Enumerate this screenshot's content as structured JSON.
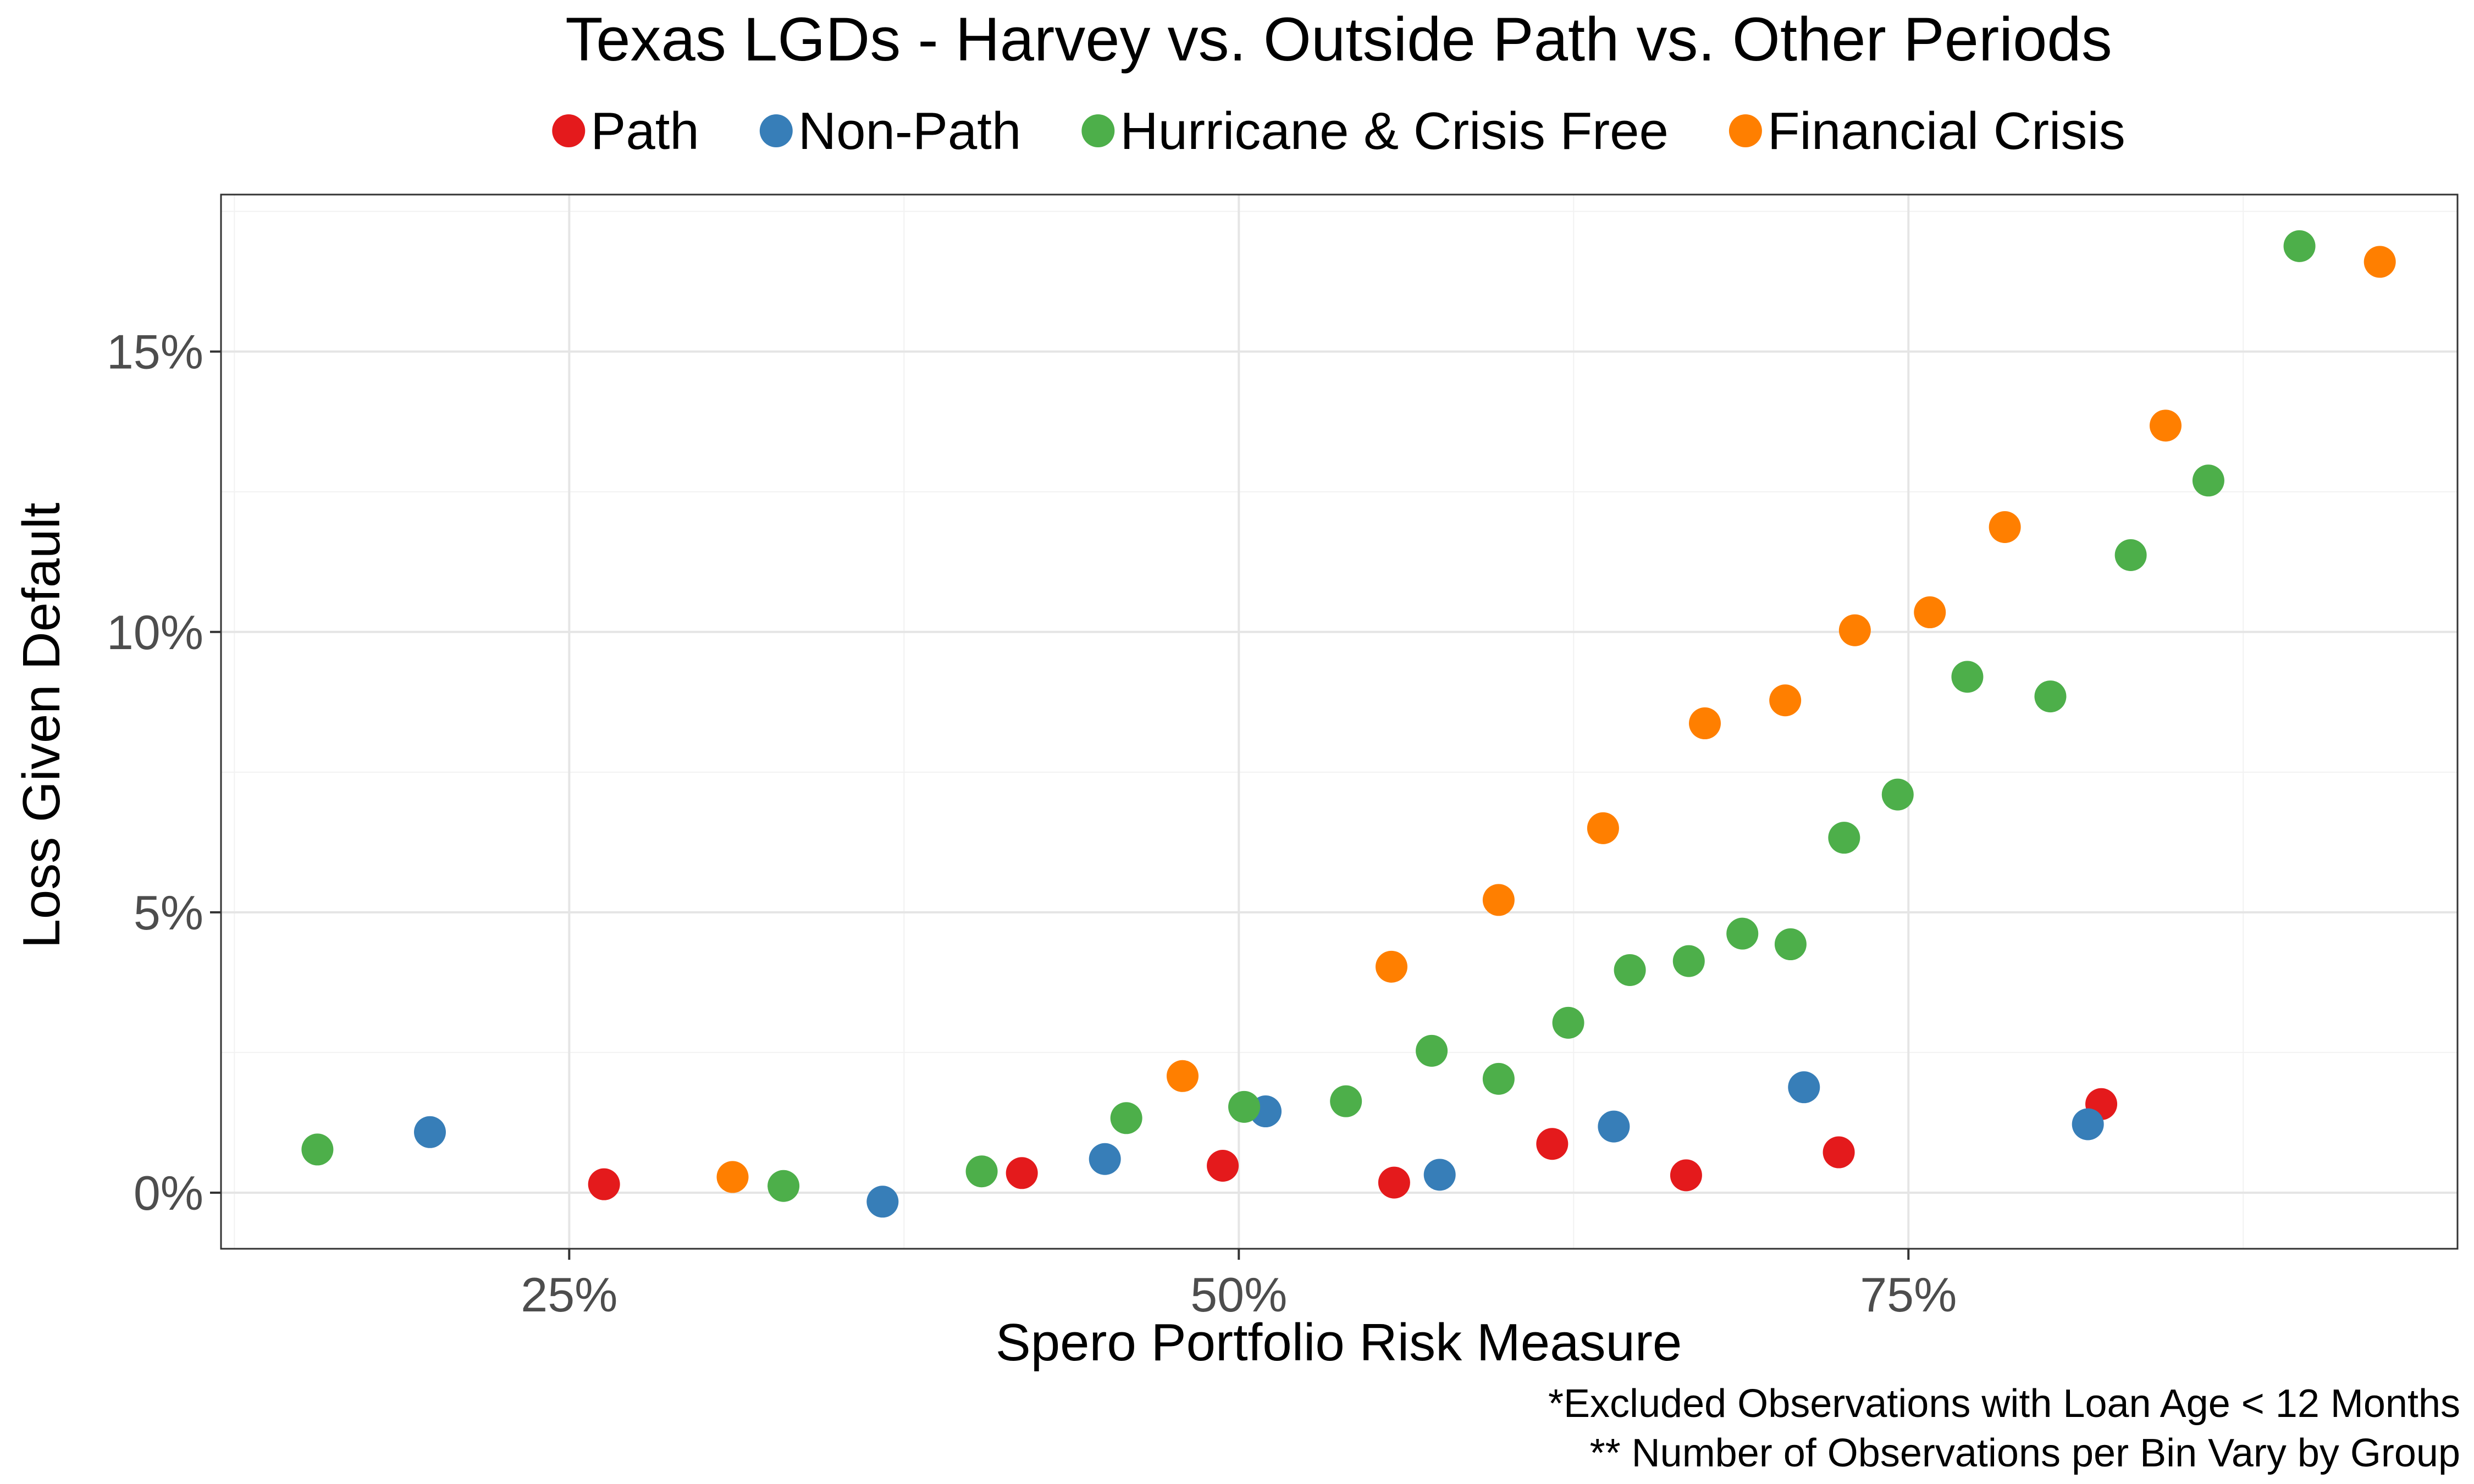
{
  "chart_data": {
    "type": "scatter",
    "title": "Texas LGDs - Harvey vs. Outside Path vs. Other Periods",
    "xlabel": "Spero Portfolio Risk Measure",
    "ylabel": "Loss Given Default",
    "xlim": [
      0.12,
      0.955
    ],
    "ylim": [
      -0.01,
      0.178
    ],
    "x_ticks": [
      0.25,
      0.5,
      0.75
    ],
    "x_tick_labels": [
      "25%",
      "50%",
      "75%"
    ],
    "y_ticks": [
      0.0,
      0.05,
      0.1,
      0.15
    ],
    "y_tick_labels": [
      "0%",
      "5%",
      "10%",
      "15%"
    ],
    "grid": true,
    "legend_position": "top",
    "captions": [
      "*Excluded Observations with Loan Age < 12 Months",
      "** Number of Observations per Bin Vary by Group"
    ],
    "series": [
      {
        "name": "Path",
        "color": "#E41A1C",
        "points": [
          [
            0.263,
            0.0015
          ],
          [
            0.419,
            0.0035
          ],
          [
            0.494,
            0.0048
          ],
          [
            0.558,
            0.0018
          ],
          [
            0.617,
            0.0087
          ],
          [
            0.667,
            0.0031
          ],
          [
            0.724,
            0.0072
          ],
          [
            0.822,
            0.0158
          ]
        ]
      },
      {
        "name": "Non-Path",
        "color": "#377EB8",
        "points": [
          [
            0.198,
            0.0108
          ],
          [
            0.367,
            -0.0016
          ],
          [
            0.45,
            0.006
          ],
          [
            0.51,
            0.0145
          ],
          [
            0.575,
            0.0032
          ],
          [
            0.64,
            0.0118
          ],
          [
            0.711,
            0.0188
          ],
          [
            0.817,
            0.0122
          ]
        ]
      },
      {
        "name": "Hurricane & Crisis Free",
        "color": "#4DAF4A",
        "points": [
          [
            0.156,
            0.0077
          ],
          [
            0.33,
            0.0012
          ],
          [
            0.404,
            0.0038
          ],
          [
            0.458,
            0.0133
          ],
          [
            0.502,
            0.0153
          ],
          [
            0.54,
            0.0163
          ],
          [
            0.572,
            0.0253
          ],
          [
            0.597,
            0.0203
          ],
          [
            0.623,
            0.0303
          ],
          [
            0.646,
            0.0397
          ],
          [
            0.668,
            0.0413
          ],
          [
            0.688,
            0.0462
          ],
          [
            0.706,
            0.0443
          ],
          [
            0.726,
            0.0633
          ],
          [
            0.746,
            0.071
          ],
          [
            0.772,
            0.092
          ],
          [
            0.803,
            0.0885
          ],
          [
            0.833,
            0.1137
          ],
          [
            0.862,
            0.127
          ],
          [
            0.896,
            0.1688
          ]
        ]
      },
      {
        "name": "Financial Crisis",
        "color": "#FF7F00",
        "points": [
          [
            0.311,
            0.0028
          ],
          [
            0.479,
            0.0208
          ],
          [
            0.557,
            0.0403
          ],
          [
            0.597,
            0.0522
          ],
          [
            0.636,
            0.065
          ],
          [
            0.674,
            0.0837
          ],
          [
            0.704,
            0.0878
          ],
          [
            0.73,
            0.1003
          ],
          [
            0.758,
            0.1035
          ],
          [
            0.786,
            0.1187
          ],
          [
            0.846,
            0.1368
          ],
          [
            0.926,
            0.166
          ]
        ]
      }
    ]
  }
}
